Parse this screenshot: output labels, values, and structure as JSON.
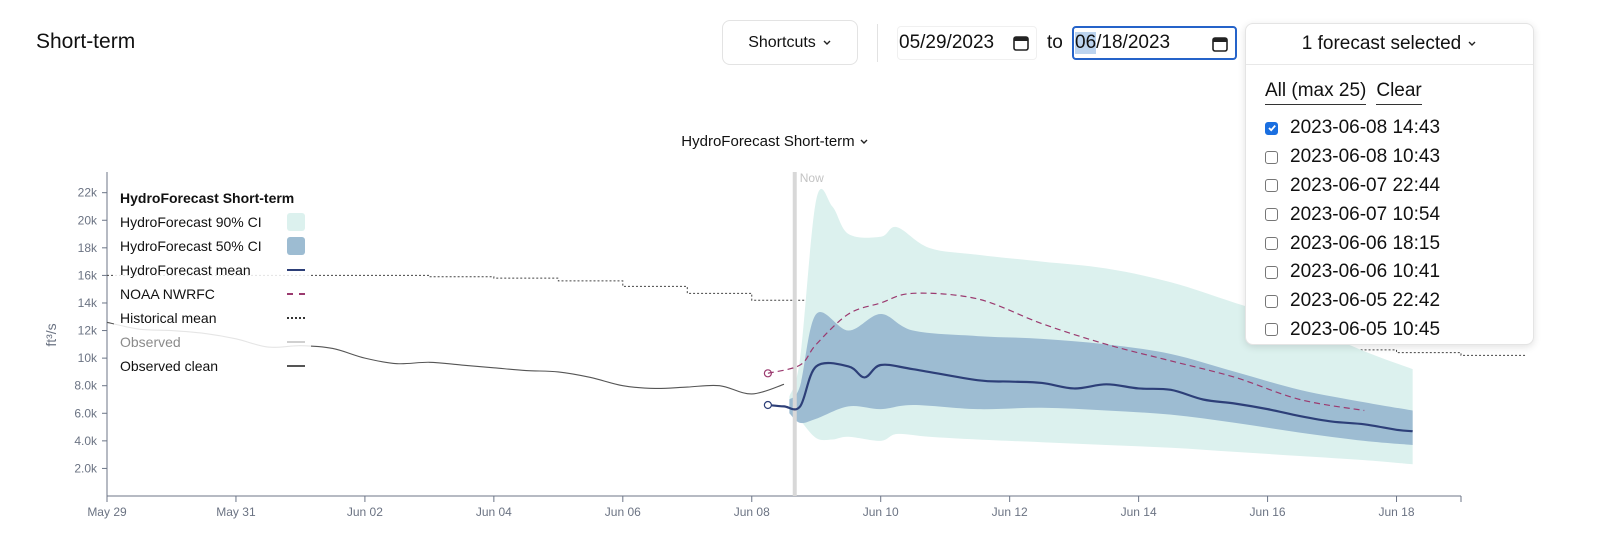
{
  "header": {
    "title": "Short-term",
    "shortcuts_label": "Shortcuts",
    "date_start": "05/29/2023",
    "to_label": "to",
    "date_end_highlight": "06",
    "date_end_rest": "/18/2023"
  },
  "forecast_selector": {
    "label": "1 forecast selected",
    "all_label": "All (max 25)",
    "clear_label": "Clear",
    "items": [
      {
        "label": "2023-06-08 14:43",
        "checked": true
      },
      {
        "label": "2023-06-08 10:43",
        "checked": false
      },
      {
        "label": "2023-06-07 22:44",
        "checked": false
      },
      {
        "label": "2023-06-07 10:54",
        "checked": false
      },
      {
        "label": "2023-06-06 18:15",
        "checked": false
      },
      {
        "label": "2023-06-06 10:41",
        "checked": false
      },
      {
        "label": "2023-06-05 22:42",
        "checked": false
      },
      {
        "label": "2023-06-05 10:45",
        "checked": false
      }
    ]
  },
  "chart_selector": {
    "label": "HydroForecast Short-term"
  },
  "legend": {
    "title": "HydroForecast Short-term",
    "items": [
      {
        "label": "HydroForecast 90% CI",
        "kind": "box",
        "color": "#dcf1ee"
      },
      {
        "label": "HydroForecast 50% CI",
        "kind": "box",
        "color": "#9dbcd2"
      },
      {
        "label": "HydroForecast mean",
        "kind": "solid",
        "color": "#2d3f78"
      },
      {
        "label": "NOAA NWRFC",
        "kind": "dashed",
        "color": "#9b3a6f"
      },
      {
        "label": "Historical mean",
        "kind": "dotted",
        "color": "#333333"
      },
      {
        "label": "Observed",
        "kind": "solid",
        "color": "#d0d0d0",
        "muted": true
      },
      {
        "label": "Observed clean",
        "kind": "solid",
        "color": "#555555"
      }
    ]
  },
  "chart_data": {
    "type": "line",
    "ylabel": "ft³/s",
    "x_start": "2023-05-29",
    "x_end": "2023-06-19",
    "y_ticks": [
      "2.0k",
      "4.0k",
      "6.0k",
      "8.0k",
      "10k",
      "12k",
      "14k",
      "16k",
      "18k",
      "20k",
      "22k"
    ],
    "x_ticks": [
      {
        "date": "2023-05-29",
        "label": "May 29"
      },
      {
        "date": "2023-05-31",
        "label": "May 31"
      },
      {
        "date": "2023-06-02",
        "label": "Jun 02"
      },
      {
        "date": "2023-06-04",
        "label": "Jun 04"
      },
      {
        "date": "2023-06-06",
        "label": "Jun 06"
      },
      {
        "date": "2023-06-08",
        "label": "Jun 08"
      },
      {
        "date": "2023-06-10",
        "label": "Jun 10"
      },
      {
        "date": "2023-06-12",
        "label": "Jun 12"
      },
      {
        "date": "2023-06-14",
        "label": "Jun 14"
      },
      {
        "date": "2023-06-16",
        "label": "Jun 16"
      },
      {
        "date": "2023-06-18",
        "label": "Jun 18"
      }
    ],
    "now": {
      "date": "2023-06-08T16:00",
      "label": "Now"
    },
    "historical_mean": [
      {
        "x": "2023-05-29",
        "y": 16000
      },
      {
        "x": "2023-06-03",
        "y": 15900
      },
      {
        "x": "2023-06-04",
        "y": 15800
      },
      {
        "x": "2023-06-05",
        "y": 15600
      },
      {
        "x": "2023-06-06",
        "y": 15200
      },
      {
        "x": "2023-06-07",
        "y": 14700
      },
      {
        "x": "2023-06-08",
        "y": 14200
      },
      {
        "x": "2023-06-09",
        "y": 13700
      },
      {
        "x": "2023-06-10",
        "y": 13300
      },
      {
        "x": "2023-06-11",
        "y": 12900
      },
      {
        "x": "2023-06-12",
        "y": 12400
      },
      {
        "x": "2023-06-13",
        "y": 11900
      },
      {
        "x": "2023-06-14",
        "y": 11300
      },
      {
        "x": "2023-06-15",
        "y": 11000
      },
      {
        "x": "2023-06-16",
        "y": 10800
      },
      {
        "x": "2023-06-17",
        "y": 10600
      },
      {
        "x": "2023-06-18",
        "y": 10400
      },
      {
        "x": "2023-06-19",
        "y": 10200
      },
      {
        "x": "2023-06-20",
        "y": 10100
      }
    ],
    "observed": [
      {
        "x": "2023-05-29T00:00",
        "y": 12600
      },
      {
        "x": "2023-05-29T12:00",
        "y": 12100
      },
      {
        "x": "2023-05-30T00:00",
        "y": 12000
      },
      {
        "x": "2023-05-30T12:00",
        "y": 11800
      },
      {
        "x": "2023-05-31T00:00",
        "y": 11400
      },
      {
        "x": "2023-05-31T12:00",
        "y": 10800
      },
      {
        "x": "2023-06-01T00:00",
        "y": 10900
      },
      {
        "x": "2023-06-01T12:00",
        "y": 10700
      },
      {
        "x": "2023-06-02T00:00",
        "y": 10000
      },
      {
        "x": "2023-06-02T12:00",
        "y": 9600
      },
      {
        "x": "2023-06-03T00:00",
        "y": 9700
      },
      {
        "x": "2023-06-03T12:00",
        "y": 9500
      },
      {
        "x": "2023-06-04T00:00",
        "y": 9300
      },
      {
        "x": "2023-06-04T12:00",
        "y": 9100
      },
      {
        "x": "2023-06-05T00:00",
        "y": 9000
      },
      {
        "x": "2023-06-05T12:00",
        "y": 8600
      },
      {
        "x": "2023-06-06T00:00",
        "y": 8000
      },
      {
        "x": "2023-06-06T12:00",
        "y": 7800
      },
      {
        "x": "2023-06-07T00:00",
        "y": 7900
      },
      {
        "x": "2023-06-07T12:00",
        "y": 8000
      },
      {
        "x": "2023-06-08T00:00",
        "y": 7400
      },
      {
        "x": "2023-06-08T12:00",
        "y": 8100
      }
    ],
    "ci90": [
      {
        "x": "2023-06-08T14:00",
        "lo": 6400,
        "hi": 7200
      },
      {
        "x": "2023-06-08T18:00",
        "lo": 5500,
        "hi": 10000
      },
      {
        "x": "2023-06-09T00:00",
        "lo": 4200,
        "hi": 21500
      },
      {
        "x": "2023-06-09T06:00",
        "lo": 4100,
        "hi": 21000
      },
      {
        "x": "2023-06-09T12:00",
        "lo": 4300,
        "hi": 19000
      },
      {
        "x": "2023-06-10T00:00",
        "lo": 4000,
        "hi": 18800
      },
      {
        "x": "2023-06-10T06:00",
        "lo": 4500,
        "hi": 19500
      },
      {
        "x": "2023-06-10T18:00",
        "lo": 4300,
        "hi": 18000
      },
      {
        "x": "2023-06-11T12:00",
        "lo": 4100,
        "hi": 17500
      },
      {
        "x": "2023-06-12T12:00",
        "lo": 3900,
        "hi": 17000
      },
      {
        "x": "2023-06-13T12:00",
        "lo": 3700,
        "hi": 16500
      },
      {
        "x": "2023-06-14T12:00",
        "lo": 3500,
        "hi": 15500
      },
      {
        "x": "2023-06-15T12:00",
        "lo": 3200,
        "hi": 14000
      },
      {
        "x": "2023-06-16T12:00",
        "lo": 2900,
        "hi": 12500
      },
      {
        "x": "2023-06-17T12:00",
        "lo": 2600,
        "hi": 10500
      },
      {
        "x": "2023-06-18T06:00",
        "lo": 2300,
        "hi": 9200
      }
    ],
    "ci50": [
      {
        "x": "2023-06-08T14:00",
        "lo": 6000,
        "hi": 7000
      },
      {
        "x": "2023-06-08T18:00",
        "lo": 5300,
        "hi": 8000
      },
      {
        "x": "2023-06-09T00:00",
        "lo": 5600,
        "hi": 13200
      },
      {
        "x": "2023-06-09T12:00",
        "lo": 6500,
        "hi": 12000
      },
      {
        "x": "2023-06-10T00:00",
        "lo": 6300,
        "hi": 13200
      },
      {
        "x": "2023-06-10T12:00",
        "lo": 6600,
        "hi": 12000
      },
      {
        "x": "2023-06-11T12:00",
        "lo": 6300,
        "hi": 11600
      },
      {
        "x": "2023-06-12T12:00",
        "lo": 6400,
        "hi": 11400
      },
      {
        "x": "2023-06-13T12:00",
        "lo": 6200,
        "hi": 11000
      },
      {
        "x": "2023-06-14T12:00",
        "lo": 5900,
        "hi": 10300
      },
      {
        "x": "2023-06-15T12:00",
        "lo": 5300,
        "hi": 9000
      },
      {
        "x": "2023-06-16T12:00",
        "lo": 4600,
        "hi": 7700
      },
      {
        "x": "2023-06-17T12:00",
        "lo": 4000,
        "hi": 6800
      },
      {
        "x": "2023-06-18T06:00",
        "lo": 3700,
        "hi": 6200
      }
    ],
    "hf_mean": [
      {
        "x": "2023-06-08T06:00",
        "y": 6600
      },
      {
        "x": "2023-06-08T12:00",
        "y": 6500
      },
      {
        "x": "2023-06-08T18:00",
        "y": 6500
      },
      {
        "x": "2023-06-09T00:00",
        "y": 9400
      },
      {
        "x": "2023-06-09T12:00",
        "y": 9400
      },
      {
        "x": "2023-06-09T18:00",
        "y": 8600
      },
      {
        "x": "2023-06-10T00:00",
        "y": 9500
      },
      {
        "x": "2023-06-10T12:00",
        "y": 9200
      },
      {
        "x": "2023-06-11T12:00",
        "y": 8400
      },
      {
        "x": "2023-06-12T00:00",
        "y": 8300
      },
      {
        "x": "2023-06-12T12:00",
        "y": 8200
      },
      {
        "x": "2023-06-13T00:00",
        "y": 7800
      },
      {
        "x": "2023-06-13T12:00",
        "y": 8100
      },
      {
        "x": "2023-06-14T00:00",
        "y": 7800
      },
      {
        "x": "2023-06-14T12:00",
        "y": 7700
      },
      {
        "x": "2023-06-15T00:00",
        "y": 7000
      },
      {
        "x": "2023-06-15T12:00",
        "y": 6700
      },
      {
        "x": "2023-06-16T00:00",
        "y": 6300
      },
      {
        "x": "2023-06-16T12:00",
        "y": 5800
      },
      {
        "x": "2023-06-17T00:00",
        "y": 5400
      },
      {
        "x": "2023-06-17T12:00",
        "y": 5200
      },
      {
        "x": "2023-06-18T00:00",
        "y": 4800
      },
      {
        "x": "2023-06-18T06:00",
        "y": 4700
      }
    ],
    "noaa": [
      {
        "x": "2023-06-08T06:00",
        "y": 8900
      },
      {
        "x": "2023-06-08T18:00",
        "y": 9500
      },
      {
        "x": "2023-06-09T00:00",
        "y": 11000
      },
      {
        "x": "2023-06-09T12:00",
        "y": 13200
      },
      {
        "x": "2023-06-10T00:00",
        "y": 14000
      },
      {
        "x": "2023-06-10T12:00",
        "y": 14700
      },
      {
        "x": "2023-06-11T12:00",
        "y": 14300
      },
      {
        "x": "2023-06-12T12:00",
        "y": 12500
      },
      {
        "x": "2023-06-13T12:00",
        "y": 11000
      },
      {
        "x": "2023-06-14T12:00",
        "y": 9800
      },
      {
        "x": "2023-06-15T12:00",
        "y": 8600
      },
      {
        "x": "2023-06-16T12:00",
        "y": 7000
      },
      {
        "x": "2023-06-17T12:00",
        "y": 6200
      }
    ]
  }
}
